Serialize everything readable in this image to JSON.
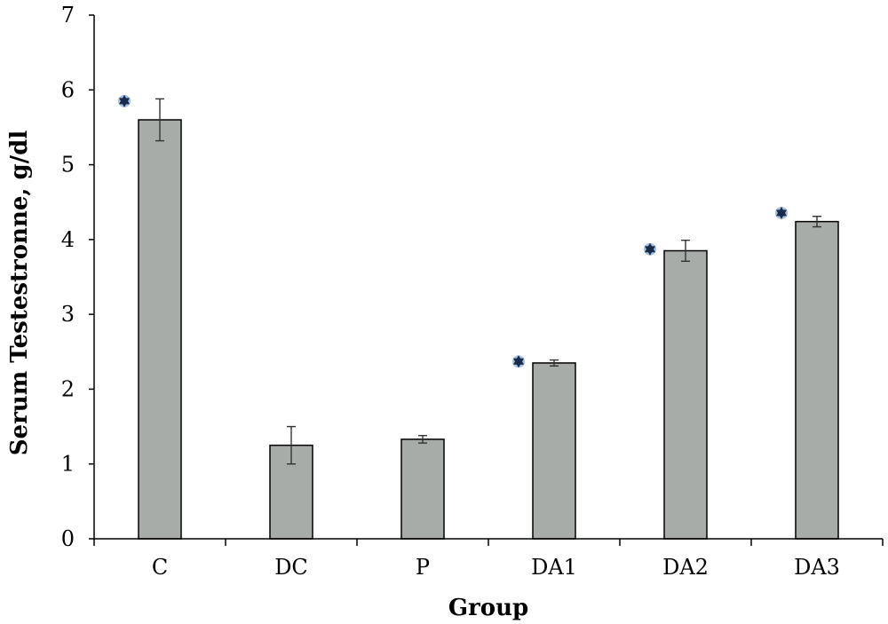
{
  "chart_data": {
    "type": "bar",
    "categories": [
      "C",
      "DC",
      "P",
      "DA1",
      "DA2",
      "DA3"
    ],
    "values": [
      5.6,
      1.25,
      1.33,
      2.35,
      3.85,
      4.24
    ],
    "error": [
      0.28,
      0.25,
      0.05,
      0.04,
      0.14,
      0.07
    ],
    "significant": [
      true,
      false,
      false,
      true,
      true,
      true
    ],
    "marker_symbol": "star-marker",
    "xlabel": "Group",
    "ylabel": "Serum Testestronne, g/dl",
    "ylim": [
      0,
      7
    ],
    "yticks": [
      0,
      1,
      2,
      3,
      4,
      5,
      6,
      7
    ],
    "grid": false,
    "colors": {
      "bar": "#a7aca8",
      "marker": "#1a2a4a",
      "marker_glow": "#6a9ad0"
    }
  }
}
